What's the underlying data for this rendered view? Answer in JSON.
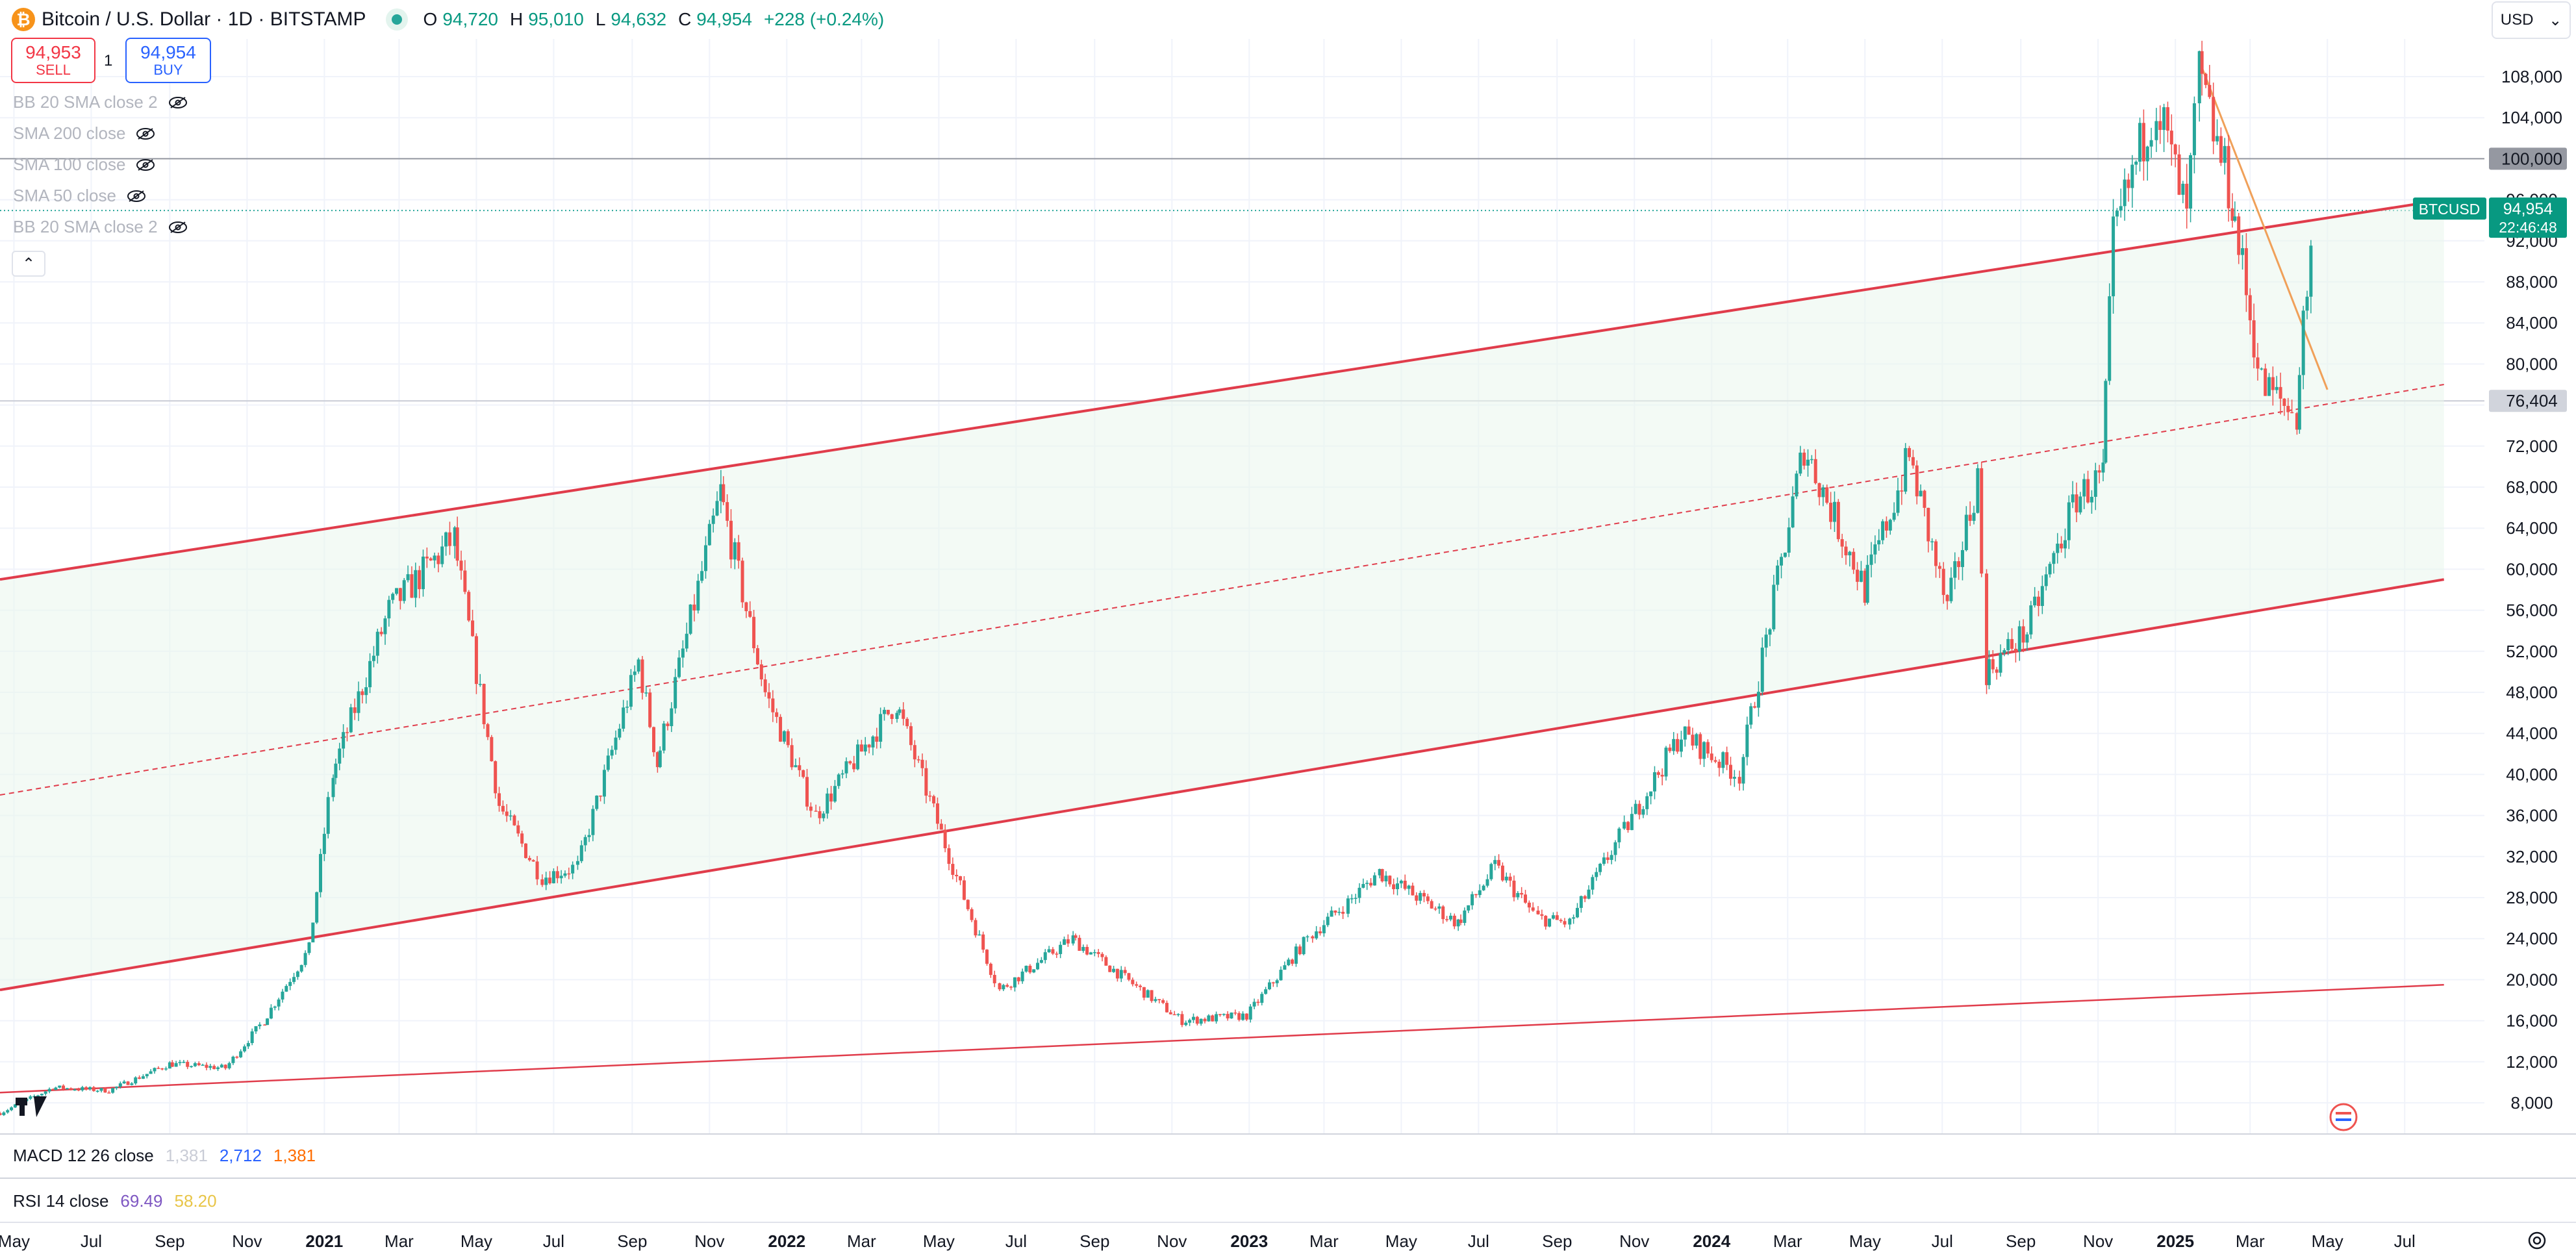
{
  "header": {
    "symbol_title": "Bitcoin / U.S. Dollar · 1D · BITSTAMP",
    "coin_icon": "bitcoin-icon",
    "market_status_color": "#26a69a",
    "ohlc": {
      "open_label": "O",
      "open": "94,720",
      "high_label": "H",
      "high": "95,010",
      "low_label": "L",
      "low": "94,632",
      "close_label": "C",
      "close": "94,954",
      "change": "+228 (+0.24%)"
    }
  },
  "trade": {
    "sell_price": "94,953",
    "sell_label": "SELL",
    "spread": "1",
    "buy_price": "94,954",
    "buy_label": "BUY"
  },
  "indicators": [
    "BB 20 SMA close 2",
    "SMA 200 close",
    "SMA 100 close",
    "SMA 50 close",
    "BB 20 SMA close 2"
  ],
  "currency_selector": {
    "value": "USD",
    "icon": "chevron-down-icon"
  },
  "price_axis": {
    "ticks": [
      "108,000",
      "104,000",
      "100,000",
      "96,000",
      "92,000",
      "88,000",
      "84,000",
      "80,000",
      "76,404",
      "72,000",
      "68,000",
      "64,000",
      "60,000",
      "56,000",
      "52,000",
      "48,000",
      "44,000",
      "40,000",
      "36,000",
      "32,000",
      "28,000",
      "24,000",
      "20,000",
      "16,000",
      "12,000",
      "8,000"
    ],
    "marked_levels": [
      "100,000",
      "76,404"
    ],
    "symbol_badge": "BTCUSD",
    "last_price": "94,954",
    "countdown": "22:46:48"
  },
  "time_axis": {
    "labels": [
      "May",
      "Jul",
      "Sep",
      "Nov",
      "2021",
      "Mar",
      "May",
      "Jul",
      "Sep",
      "Nov",
      "2022",
      "Mar",
      "May",
      "Jul",
      "Sep",
      "Nov",
      "2023",
      "Mar",
      "May",
      "Jul",
      "Sep",
      "Nov",
      "2024",
      "Mar",
      "May",
      "Jul",
      "Sep",
      "Nov",
      "2025",
      "Mar",
      "May",
      "Jul"
    ],
    "bold_labels": [
      "2021",
      "2022",
      "2023",
      "2024",
      "2025"
    ]
  },
  "panes": {
    "macd": {
      "label": "MACD 12 26 close",
      "v1": "1,381",
      "v2": "2,712",
      "v3": "1,381"
    },
    "rsi": {
      "label": "RSI 14 close",
      "v1": "69.49",
      "v2": "58.20"
    }
  },
  "colors": {
    "up": "#26a69a",
    "down": "#ef5350",
    "channel": "#e03c4b",
    "trendline": "#f0a059",
    "accent": "#089981",
    "price_badge": "#089981"
  },
  "chart_data": {
    "type": "candlestick",
    "title": "Bitcoin / U.S. Dollar · 1D · BITSTAMP",
    "ylabel": "",
    "xlabel": "",
    "ylim": [
      6000,
      110000
    ],
    "xlim": [
      "2020-04-20",
      "2025-08-15"
    ],
    "grid": true,
    "y_scale": "linear",
    "last_close": 94954,
    "series": [
      {
        "x": [
          "2020-04-20",
          "2020-06-01",
          "2020-07-15",
          "2020-09-01",
          "2020-10-15",
          "2020-11-15",
          "2020-12-20",
          "2021-01-08",
          "2021-02-21",
          "2021-04-14",
          "2021-05-19",
          "2021-06-22",
          "2021-07-20",
          "2021-09-06",
          "2021-09-21",
          "2021-11-10",
          "2021-12-15",
          "2022-01-24",
          "2022-03-29",
          "2022-05-15",
          "2022-06-18",
          "2022-08-15",
          "2022-11-09",
          "2022-12-30",
          "2023-02-20",
          "2023-03-20",
          "2023-04-14",
          "2023-06-15",
          "2023-07-14",
          "2023-08-17",
          "2023-09-11",
          "2023-10-24",
          "2023-12-08",
          "2024-01-23",
          "2024-03-14",
          "2024-05-01",
          "2024-06-05",
          "2024-07-05",
          "2024-07-29",
          "2024-08-05",
          "2024-09-06",
          "2024-10-15",
          "2024-11-05",
          "2024-11-13",
          "2024-12-17",
          "2025-01-10",
          "2025-01-20",
          "2025-02-15",
          "2025-03-10",
          "2025-04-07",
          "2025-04-12",
          "2025-04-22"
        ],
        "values": [
          7000,
          9500,
          9200,
          11800,
          11400,
          16000,
          23000,
          40000,
          56000,
          63000,
          37000,
          30000,
          31000,
          51000,
          41000,
          67500,
          48000,
          36000,
          47000,
          30000,
          19000,
          24000,
          16000,
          16500,
          24500,
          27500,
          30500,
          25500,
          31000,
          26000,
          25500,
          34500,
          44000,
          40000,
          72000,
          58000,
          71000,
          56000,
          69000,
          50000,
          54000,
          67000,
          69000,
          92000,
          106000,
          94000,
          108000,
          96000,
          78000,
          75000,
          84000,
          94954
        ]
      }
    ],
    "channel": {
      "upper": {
        "x": [
          "2020-04-20",
          "2025-08-01"
        ],
        "y": [
          59000,
          96000
        ]
      },
      "middle": {
        "x": [
          "2020-04-20",
          "2025-08-01"
        ],
        "y": [
          38000,
          78000
        ]
      },
      "lower": {
        "x": [
          "2020-04-20",
          "2025-08-01"
        ],
        "y": [
          19000,
          59000
        ]
      },
      "bottom_line": {
        "x": [
          "2020-04-20",
          "2025-08-01"
        ],
        "y": [
          9000,
          19500
        ]
      }
    },
    "trendline": {
      "x": [
        "2025-01-20",
        "2025-05-01"
      ],
      "y": [
        109500,
        77500
      ]
    },
    "horizontal_levels": [
      100000,
      76404
    ]
  }
}
